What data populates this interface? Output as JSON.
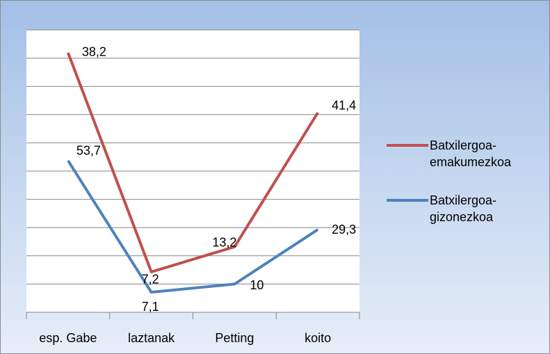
{
  "chart_data": {
    "type": "line",
    "stacked": true,
    "categories": [
      "esp. Gabe",
      "laztanak",
      "Petting",
      "koito"
    ],
    "series": [
      {
        "name": "Batxilergoa-gizonezkoa",
        "color": "#4f81bd",
        "values": [
          53.7,
          7.1,
          10,
          29.3
        ],
        "value_labels": [
          "53,7",
          "7,1",
          "10",
          "29,3"
        ]
      },
      {
        "name": "Batxilergoa-emakumezkoa",
        "color": "#c0504d",
        "values": [
          38.2,
          7.2,
          13.2,
          41.4
        ],
        "value_labels": [
          "38,2",
          "7,2",
          "13,2",
          "41,4"
        ]
      }
    ],
    "ylim": [
      0,
      100
    ],
    "yticks": [
      0,
      10,
      20,
      30,
      40,
      50,
      60,
      70,
      80,
      90,
      100
    ],
    "grid": true,
    "legend": "right"
  }
}
